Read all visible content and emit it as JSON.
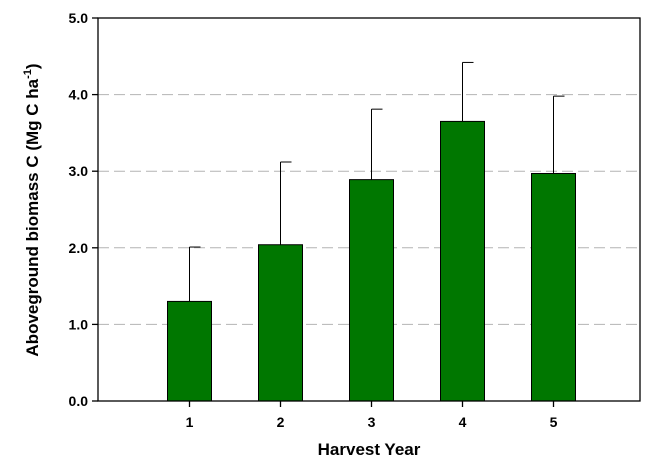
{
  "chart_data": {
    "type": "bar",
    "categories": [
      "1",
      "2",
      "3",
      "4",
      "5"
    ],
    "values": [
      1.3,
      2.04,
      2.89,
      3.65,
      2.97
    ],
    "error_upper": [
      2.01,
      3.12,
      3.81,
      4.42,
      3.98
    ],
    "xlabel": "Harvest Year",
    "ylabel": {
      "main": "Aboveground biomass C (Mg C ha",
      "superscript": "-1",
      "close": ")"
    },
    "ylim": [
      0,
      5
    ],
    "yticks": [
      "0.0",
      "1.0",
      "2.0",
      "3.0",
      "4.0",
      "5.0"
    ],
    "grid": "horizontal-dashed",
    "bar_color": "#007700",
    "grid_color": "#b4b4b4"
  }
}
